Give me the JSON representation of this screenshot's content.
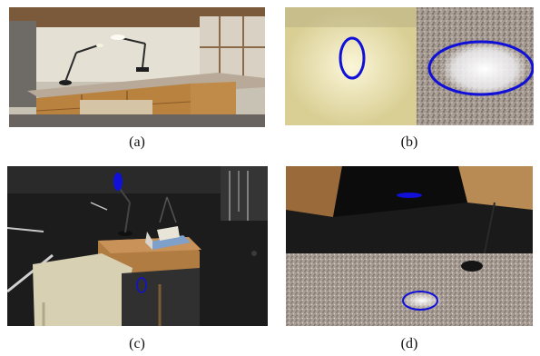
{
  "figure": {
    "panels": [
      {
        "id": "a",
        "label": "(a)",
        "content": "office-desk-with-lamps"
      },
      {
        "id": "b",
        "label": "(b)",
        "content": "highlight-closeups"
      },
      {
        "id": "c",
        "label": "(c)",
        "content": "dark-room-table-view"
      },
      {
        "id": "d",
        "label": "(d)",
        "content": "countertop-view"
      }
    ],
    "highlight_marker_color": "#1010d8"
  }
}
